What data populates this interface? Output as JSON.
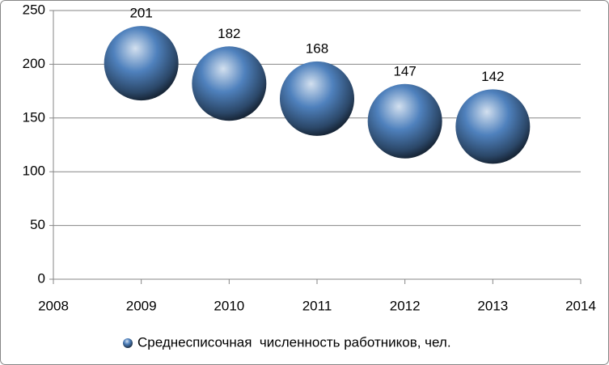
{
  "chart_data": {
    "type": "scatter",
    "x": [
      2009,
      2010,
      2011,
      2012,
      2013
    ],
    "series": [
      {
        "name": "Среднесписочная  численность работников, чел.",
        "color": "#4f81bd",
        "values": [
          201,
          182,
          168,
          147,
          142
        ]
      }
    ],
    "xlim": [
      2008,
      2014
    ],
    "xticks": [
      2008,
      2009,
      2010,
      2011,
      2012,
      2013,
      2014
    ],
    "ylim": [
      0,
      250
    ],
    "yticks": [
      0,
      50,
      100,
      150,
      200,
      250
    ],
    "grid": true,
    "legend": "bottom"
  }
}
